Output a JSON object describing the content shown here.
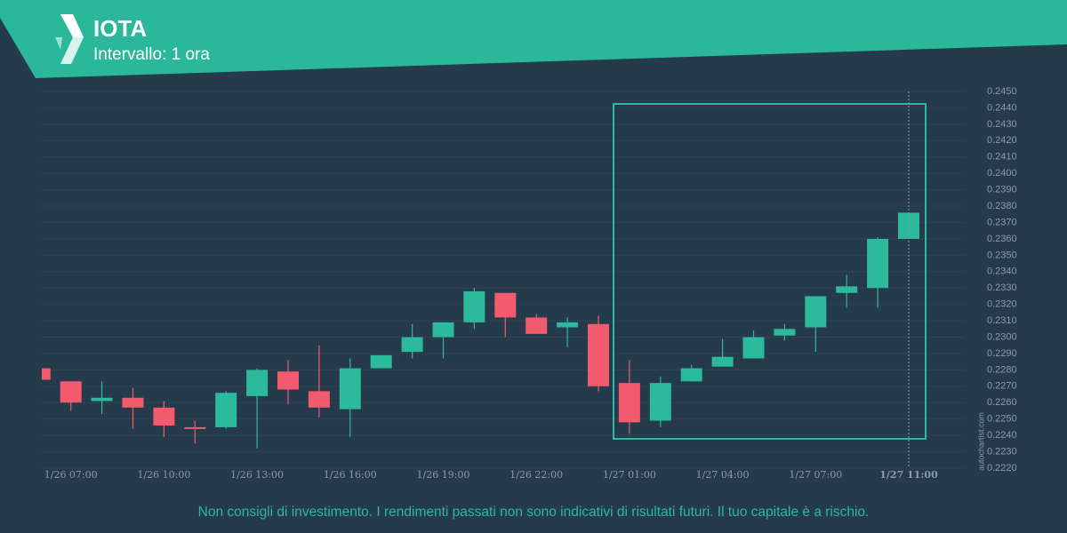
{
  "header": {
    "title": "IOTA",
    "subtitle": "Intervallo: 1 ora"
  },
  "chart_data": {
    "type": "candlestick",
    "x": [
      null,
      "1/26 07:00",
      null,
      null,
      "1/26 10:00",
      null,
      null,
      "1/26 13:00",
      null,
      null,
      "1/26 16:00",
      null,
      null,
      "1/26 19:00",
      null,
      null,
      "1/26 22:00",
      null,
      null,
      "1/27 01:00",
      null,
      null,
      "1/27 04:00",
      null,
      null,
      "1/27 07:00",
      null,
      null,
      "1/27 11:00"
    ],
    "open": [
      0.2281,
      0.2273,
      0.2261,
      0.2263,
      0.2257,
      0.2245,
      0.2245,
      0.2264,
      0.2279,
      0.2267,
      0.2256,
      0.2281,
      0.2291,
      0.23,
      0.2309,
      0.2327,
      0.2312,
      0.2306,
      0.2308,
      0.2272,
      0.2249,
      0.2273,
      0.2282,
      0.2287,
      0.2301,
      0.2306,
      0.2327,
      0.233,
      0.236
    ],
    "high": [
      0.2281,
      0.2273,
      0.2273,
      0.2269,
      0.2261,
      0.2249,
      0.2267,
      0.2281,
      0.2286,
      0.2295,
      0.2287,
      0.2289,
      0.2308,
      0.2309,
      0.233,
      0.2327,
      0.2314,
      0.2312,
      0.2313,
      0.2286,
      0.2276,
      0.2283,
      0.2299,
      0.2304,
      0.2308,
      0.2325,
      0.2338,
      0.2361,
      0.2376
    ],
    "low": [
      0.2274,
      0.2255,
      0.2253,
      0.2244,
      0.2239,
      0.2235,
      0.2244,
      0.2232,
      0.2259,
      0.2251,
      0.2239,
      0.2281,
      0.2287,
      0.2287,
      0.2305,
      0.23,
      0.2302,
      0.2294,
      0.2267,
      0.2241,
      0.2245,
      0.2273,
      0.2282,
      0.2287,
      0.2298,
      0.2291,
      0.2318,
      0.2318,
      0.236
    ],
    "close": [
      0.2274,
      0.226,
      0.2263,
      0.2257,
      0.2246,
      0.2244,
      0.2266,
      0.228,
      0.2268,
      0.2257,
      0.2281,
      0.2289,
      0.23,
      0.2309,
      0.2328,
      0.2312,
      0.2302,
      0.2309,
      0.227,
      0.2248,
      0.2272,
      0.2281,
      0.2288,
      0.23,
      0.2305,
      0.2325,
      0.2331,
      0.236,
      0.2376
    ],
    "up_color": "#2bba9b",
    "down_color": "#f25a6e",
    "ylim": [
      0.222,
      0.245
    ],
    "yticks": [
      {
        "value": 0.222,
        "label": "0.2220"
      },
      {
        "value": 0.223,
        "label": "0.2230"
      },
      {
        "value": 0.224,
        "label": "0.2240"
      },
      {
        "value": 0.225,
        "label": "0.2250"
      },
      {
        "value": 0.226,
        "label": "0.2260"
      },
      {
        "value": 0.227,
        "label": "0.2270"
      },
      {
        "value": 0.228,
        "label": "0.2280"
      },
      {
        "value": 0.229,
        "label": "0.2290"
      },
      {
        "value": 0.23,
        "label": "0.2300"
      },
      {
        "value": 0.231,
        "label": "0.2310"
      },
      {
        "value": 0.232,
        "label": "0.2320"
      },
      {
        "value": 0.233,
        "label": "0.2330"
      },
      {
        "value": 0.234,
        "label": "0.2340"
      },
      {
        "value": 0.235,
        "label": "0.2350"
      },
      {
        "value": 0.236,
        "label": "0.2360"
      },
      {
        "value": 0.237,
        "label": "0.2370"
      },
      {
        "value": 0.238,
        "label": "0.2380"
      },
      {
        "value": 0.239,
        "label": "0.2390"
      },
      {
        "value": 0.24,
        "label": "0.2400"
      },
      {
        "value": 0.241,
        "label": "0.2410"
      },
      {
        "value": 0.242,
        "label": "0.2420"
      },
      {
        "value": 0.243,
        "label": "0.2430"
      },
      {
        "value": 0.244,
        "label": "0.2440"
      },
      {
        "value": 0.245,
        "label": "0.2450"
      }
    ],
    "grid": true
  },
  "watermark": "autochartist.com",
  "disclaimer": "Non consigli di investimento. I rendimenti passati non sono indicativi di risultati futuri. Il tuo capitale è a rischio."
}
